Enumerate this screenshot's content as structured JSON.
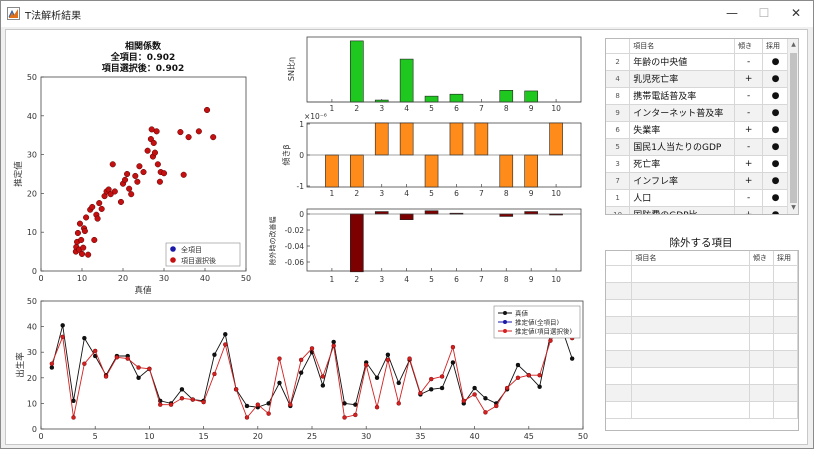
{
  "window": {
    "title": "T法解析結果",
    "minimize": "—",
    "maximize": "☐",
    "close": "✕",
    "app_icon": "matlab-figure-icon"
  },
  "scatter": {
    "title_lines": [
      "相関係数",
      "全項目：0.902",
      "項目選択後：0.902"
    ],
    "xlabel": "真値",
    "ylabel": "推定値",
    "xlim": [
      0,
      50
    ],
    "ylim": [
      0,
      50
    ],
    "xticks": [
      0,
      10,
      20,
      30,
      40,
      50
    ],
    "yticks": [
      0,
      10,
      20,
      30,
      40,
      50
    ],
    "legend": [
      "全項目",
      "項目選択後"
    ],
    "colors": {
      "all": "#1a1aa8",
      "selected": "#c41010"
    },
    "points": [
      [
        8.5,
        5
      ],
      [
        8.6,
        6.2
      ],
      [
        8.8,
        7.5
      ],
      [
        9,
        9.8
      ],
      [
        9.3,
        5.5
      ],
      [
        9.5,
        12.2
      ],
      [
        9.8,
        8
      ],
      [
        10,
        4.4
      ],
      [
        10.3,
        6
      ],
      [
        10.5,
        11
      ],
      [
        10.7,
        10.3
      ],
      [
        11,
        13.8
      ],
      [
        11.5,
        4.2
      ],
      [
        12,
        15.8
      ],
      [
        12.5,
        16.5
      ],
      [
        13,
        8
      ],
      [
        13.5,
        14.5
      ],
      [
        13.8,
        13.5
      ],
      [
        14.2,
        17.5
      ],
      [
        14.8,
        16
      ],
      [
        15.5,
        19.3
      ],
      [
        16,
        20.5
      ],
      [
        16.5,
        21
      ],
      [
        17,
        19.8
      ],
      [
        17.5,
        27.5
      ],
      [
        18,
        20.5
      ],
      [
        19.5,
        17.8
      ],
      [
        20,
        22.5
      ],
      [
        20.5,
        23.5
      ],
      [
        21,
        25
      ],
      [
        21.5,
        21.2
      ],
      [
        22,
        19.8
      ],
      [
        23,
        24.5
      ],
      [
        23.5,
        23
      ],
      [
        24,
        27
      ],
      [
        25,
        25.5
      ],
      [
        26,
        31
      ],
      [
        26.8,
        34
      ],
      [
        27,
        36.5
      ],
      [
        27.3,
        29.5
      ],
      [
        27.5,
        33
      ],
      [
        27.8,
        30.5
      ],
      [
        28.2,
        36
      ],
      [
        28.5,
        27.5
      ],
      [
        29,
        23
      ],
      [
        29.2,
        25.5
      ],
      [
        30,
        25.2
      ],
      [
        34,
        35.8
      ],
      [
        34.8,
        24.8
      ],
      [
        36,
        34.5
      ],
      [
        38.5,
        36
      ],
      [
        40.5,
        41.5
      ],
      [
        42,
        34.5
      ]
    ]
  },
  "sn_chart": {
    "ylabel": "SN比η",
    "categories": [
      "1",
      "2",
      "3",
      "4",
      "5",
      "6",
      "7",
      "8",
      "9",
      "10"
    ],
    "values": [
      0,
      4.7,
      0.15,
      3.3,
      0.45,
      0.6,
      0,
      0.9,
      0.85,
      0
    ],
    "ylim": [
      0,
      5
    ],
    "color": "#1ec81e"
  },
  "beta_chart": {
    "ylabel": "傾きβ",
    "exponent": "×10⁻⁶",
    "categories": [
      "1",
      "2",
      "3",
      "4",
      "5",
      "6",
      "7",
      "8",
      "9",
      "10"
    ],
    "values": [
      -1,
      -1,
      1,
      1,
      -1,
      1,
      1,
      -1,
      -1,
      1
    ],
    "ylim": [
      -1,
      1
    ],
    "yticks": [
      -1,
      0,
      1
    ],
    "color": "#ff8c1a"
  },
  "corr_chart": {
    "ylabel": "除外時の改善幅",
    "categories": [
      "1",
      "2",
      "3",
      "4",
      "5",
      "6",
      "7",
      "8",
      "9",
      "10"
    ],
    "values": [
      0,
      -0.071,
      0.003,
      -0.007,
      0.004,
      0.001,
      0,
      -0.003,
      0.003,
      -0.001
    ],
    "ylim": [
      -0.07,
      0.0
    ],
    "yticks": [
      "0",
      "-0.02",
      "-0.04",
      "-0.06"
    ],
    "color": "#7d0000"
  },
  "line_chart": {
    "ylabel": "出生率",
    "xlim": [
      0,
      50
    ],
    "ylim": [
      0,
      50
    ],
    "xticks": [
      0,
      5,
      10,
      15,
      20,
      25,
      30,
      35,
      40,
      45,
      50
    ],
    "yticks": [
      0,
      10,
      20,
      30,
      40,
      50
    ],
    "legend": [
      "真値",
      "推定値(全項目)",
      "推定値(項目選択後)"
    ],
    "colors": {
      "actual": "#111111",
      "all": "#1a1aa8",
      "selected": "#d42020"
    },
    "actual": [
      24,
      40.5,
      11,
      35.5,
      28.5,
      21,
      28.5,
      28.5,
      20,
      23.5,
      11,
      10,
      15.5,
      11.5,
      11,
      29,
      37,
      15.5,
      9,
      8.5,
      10,
      18,
      9,
      22,
      30,
      17,
      34,
      10,
      9.5,
      26,
      20,
      29,
      18,
      27,
      13.5,
      15.5,
      16,
      26,
      10,
      16,
      12,
      10,
      15.5,
      25,
      21,
      16.5,
      37,
      40,
      27.5
    ],
    "estimate": [
      25.5,
      36,
      4.5,
      25.5,
      30.5,
      20.5,
      28,
      27.5,
      24,
      23.5,
      9.5,
      9.5,
      12,
      11.5,
      10.5,
      21.5,
      33,
      15.5,
      4.5,
      9.5,
      6,
      27.5,
      9.5,
      27,
      31.5,
      20.5,
      32.5,
      4.5,
      5.5,
      25,
      8.5,
      27,
      10,
      27.5,
      14,
      19.5,
      20.5,
      32,
      11,
      13.5,
      6.5,
      9,
      16,
      20,
      21,
      21,
      34.5,
      40.5,
      35.5
    ]
  },
  "items_table": {
    "headers": [
      "項目名",
      "傾き",
      "採用"
    ],
    "rows": [
      {
        "idx": "2",
        "name": "年齢の中央値",
        "slope": "-",
        "adopt": "●"
      },
      {
        "idx": "4",
        "name": "乳児死亡率",
        "slope": "+",
        "adopt": "●"
      },
      {
        "idx": "8",
        "name": "携帯電話普及率",
        "slope": "-",
        "adopt": "●"
      },
      {
        "idx": "9",
        "name": "インターネット普及率",
        "slope": "-",
        "adopt": "●"
      },
      {
        "idx": "6",
        "name": "失業率",
        "slope": "+",
        "adopt": "●"
      },
      {
        "idx": "5",
        "name": "国民1人当たりのGDP",
        "slope": "-",
        "adopt": "●"
      },
      {
        "idx": "3",
        "name": "死亡率",
        "slope": "+",
        "adopt": "●"
      },
      {
        "idx": "7",
        "name": "インフレ率",
        "slope": "+",
        "adopt": "●"
      },
      {
        "idx": "1",
        "name": "人口",
        "slope": "-",
        "adopt": "●"
      },
      {
        "idx": "10",
        "name": "国防費のGDP比",
        "slope": "+",
        "adopt": "●"
      }
    ]
  },
  "excluded": {
    "title": "除外する項目",
    "headers": [
      "項目名",
      "傾き",
      "採用"
    ],
    "empty_rows": 9
  }
}
